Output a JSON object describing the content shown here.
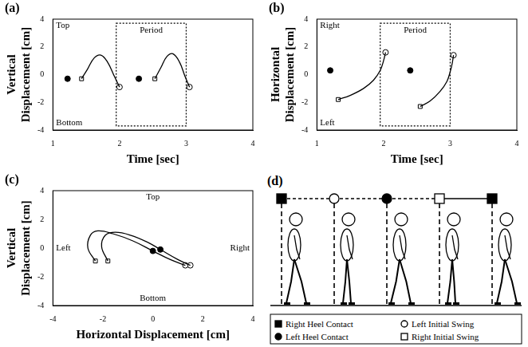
{
  "chart_data": [
    {
      "type": "line",
      "title": "(a)",
      "x_label": "Time [sec]",
      "y_label": "Vertical Displacement [cm]",
      "xlim": [
        1,
        4
      ],
      "xticks": [
        1,
        2,
        3,
        4
      ],
      "ylim": [
        -4,
        4
      ],
      "yticks": [
        -4,
        -2,
        0,
        2,
        4
      ],
      "grid": false,
      "annotations": [
        {
          "text": "Top",
          "position": "top-left"
        },
        {
          "text": "Bottom",
          "position": "bottom-left"
        },
        {
          "text": "Period",
          "box_x": [
            1.95,
            3.0
          ],
          "box_y": [
            -3.7,
            3.7
          ]
        }
      ],
      "series": [
        {
          "type": "line",
          "color": "#000000",
          "x": [
            1.43,
            1.52,
            1.62,
            1.72,
            1.82,
            1.92,
            2.0
          ],
          "values": [
            -0.3,
            0.4,
            1.2,
            1.4,
            0.9,
            -0.1,
            -0.9
          ]
        },
        {
          "type": "line",
          "color": "#000000",
          "x": [
            2.53,
            2.62,
            2.71,
            2.8,
            2.9,
            2.98,
            3.05
          ],
          "values": [
            -0.3,
            0.5,
            1.3,
            1.5,
            0.9,
            -0.1,
            -0.9
          ]
        },
        {
          "name": "Left Heel Contact",
          "type": "scatter",
          "marker": "circle",
          "color": "#000000",
          "x": [
            1.22,
            2.29
          ],
          "values": [
            -0.3,
            -0.3
          ]
        },
        {
          "name": "Right Initial Swing",
          "type": "scatter",
          "marker": "square",
          "color": "#ffffff",
          "x": [
            1.43,
            2.53
          ],
          "values": [
            -0.3,
            -0.3
          ]
        },
        {
          "name": "Left Initial Swing",
          "type": "scatter",
          "marker": "circle",
          "color": "#ffffff",
          "x": [
            2.0,
            3.05
          ],
          "values": [
            -0.9,
            -0.9
          ]
        }
      ]
    },
    {
      "type": "line",
      "title": "(b)",
      "x_label": "Time [sec]",
      "y_label": "Horizontal Displacement [cm]",
      "xlim": [
        1,
        4
      ],
      "xticks": [
        1,
        2,
        3,
        4
      ],
      "ylim": [
        -4,
        4
      ],
      "yticks": [
        -4,
        -2,
        0,
        2,
        4
      ],
      "grid": false,
      "annotations": [
        {
          "text": "Right",
          "position": "top-left"
        },
        {
          "text": "Left",
          "position": "bottom-left"
        },
        {
          "text": "Period",
          "box_x": [
            1.95,
            3.0
          ],
          "box_y": [
            -3.7,
            3.7
          ]
        }
      ],
      "series": [
        {
          "type": "line",
          "color": "#000000",
          "x": [
            1.32,
            1.5,
            1.7,
            1.85,
            1.95,
            2.0,
            2.03
          ],
          "values": [
            -1.8,
            -1.5,
            -1.0,
            -0.4,
            0.3,
            1.0,
            1.6
          ]
        },
        {
          "type": "line",
          "color": "#000000",
          "x": [
            2.55,
            2.7,
            2.85,
            2.95,
            3.0,
            3.03,
            3.05
          ],
          "values": [
            -2.3,
            -1.9,
            -1.2,
            -0.5,
            0.2,
            0.8,
            1.4
          ]
        },
        {
          "name": "Left Heel Contact",
          "type": "scatter",
          "marker": "circle",
          "color": "#000000",
          "x": [
            1.2,
            2.4
          ],
          "values": [
            0.3,
            0.3
          ]
        },
        {
          "name": "Right Initial Swing",
          "type": "scatter",
          "marker": "square",
          "color": "#ffffff",
          "x": [
            1.32,
            2.55
          ],
          "values": [
            -1.8,
            -2.3
          ]
        },
        {
          "name": "Left Initial Swing",
          "type": "scatter",
          "marker": "circle",
          "color": "#ffffff",
          "x": [
            2.03,
            3.05
          ],
          "values": [
            1.6,
            1.4
          ]
        }
      ]
    },
    {
      "type": "line",
      "title": "(c)",
      "x_label": "Horizontal Displacement [cm]",
      "y_label": "Vertical Displacement [cm]",
      "xlim": [
        -4,
        4
      ],
      "xticks": [
        -4,
        -2,
        0,
        2,
        4
      ],
      "ylim": [
        -4,
        4
      ],
      "yticks": [
        -4,
        -2,
        0,
        2,
        4
      ],
      "grid": false,
      "annotations": [
        {
          "text": "Top",
          "position": "top"
        },
        {
          "text": "Bottom",
          "position": "bottom"
        },
        {
          "text": "Left",
          "position": "left"
        },
        {
          "text": "Right",
          "position": "right"
        }
      ],
      "series": [
        {
          "type": "line",
          "color": "#000000",
          "x": [
            -2.3,
            -2.6,
            -2.5,
            -2.2,
            -1.6,
            -0.8,
            0.0,
            0.7,
            1.3
          ],
          "values": [
            -0.9,
            0.0,
            0.9,
            1.2,
            1.0,
            0.5,
            -0.2,
            -0.8,
            -1.2
          ]
        },
        {
          "type": "line",
          "color": "#000000",
          "x": [
            -1.8,
            -2.05,
            -1.9,
            -1.5,
            -0.9,
            -0.2,
            0.3,
            1.0,
            1.5
          ],
          "values": [
            -0.9,
            0.1,
            0.9,
            1.1,
            0.9,
            0.4,
            -0.1,
            -0.8,
            -1.2
          ]
        },
        {
          "name": "Right Initial Swing",
          "type": "scatter",
          "marker": "square",
          "color": "#ffffff",
          "x": [
            -2.3,
            -1.8
          ],
          "values": [
            -0.9,
            -0.9
          ]
        },
        {
          "name": "Left Heel Contact",
          "type": "scatter",
          "marker": "circle",
          "color": "#000000",
          "x": [
            0.0,
            0.3
          ],
          "values": [
            -0.2,
            -0.1
          ]
        },
        {
          "name": "Left Initial Swing",
          "type": "scatter",
          "marker": "circle",
          "color": "#ffffff",
          "x": [
            1.3,
            1.5
          ],
          "values": [
            -1.2,
            -1.2
          ]
        }
      ]
    }
  ],
  "diagram": {
    "title": "(d)",
    "sequence": [
      "Right Heel Contact",
      "Left Initial Swing",
      "Left Heel Contact",
      "Right Initial Swing",
      "Right Heel Contact"
    ],
    "legend": [
      {
        "name": "Right Heel Contact",
        "marker": "square",
        "color": "#000000"
      },
      {
        "name": "Left Initial Swing",
        "marker": "circle",
        "color": "#ffffff"
      },
      {
        "name": "Left Heel Contact",
        "marker": "circle",
        "color": "#000000"
      },
      {
        "name": "Right Initial Swing",
        "marker": "square",
        "color": "#ffffff"
      }
    ]
  }
}
